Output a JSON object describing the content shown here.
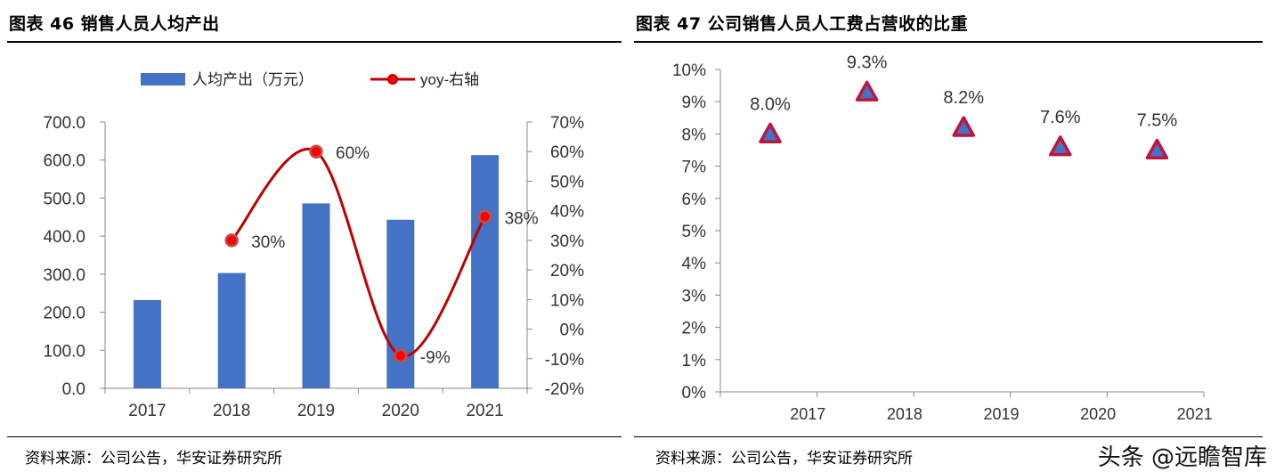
{
  "left": {
    "title": "图表 46 销售人员人均产出",
    "source": "资料来源：公司公告，华安证券研究所",
    "legend": {
      "bar": "人均产出（万元）",
      "line": "yoy-右轴"
    }
  },
  "right": {
    "title": "图表 47 公司销售人员人工费占营收的比重",
    "source": "资料来源：公司公告，华安证券研究所"
  },
  "watermark": "头条 @远瞻智库",
  "colors": {
    "bar": "#4472c4",
    "line": "#c00000",
    "marker_fill": "#ff0000",
    "triangle_fill": "#4472c4",
    "triangle_stroke": "#c0143c"
  },
  "chart_data": [
    {
      "type": "bar",
      "categories": [
        "2017",
        "2018",
        "2019",
        "2020",
        "2021"
      ],
      "series": [
        {
          "name": "人均产出（万元）",
          "axis": "left",
          "type": "bar",
          "values": [
            232,
            303,
            486,
            443,
            613
          ]
        },
        {
          "name": "yoy-右轴",
          "axis": "right",
          "type": "line",
          "values": [
            null,
            30,
            60,
            -9,
            38
          ],
          "labels": [
            "",
            "30%",
            "60%",
            "-9%",
            "38%"
          ]
        }
      ],
      "ylim": [
        0,
        700
      ],
      "yticks": [
        "0.0",
        "100.0",
        "200.0",
        "300.0",
        "400.0",
        "500.0",
        "600.0",
        "700.0"
      ],
      "y2lim": [
        -20,
        70
      ],
      "y2ticks": [
        "-20%",
        "-10%",
        "0%",
        "10%",
        "20%",
        "30%",
        "40%",
        "50%",
        "60%",
        "70%"
      ],
      "legend": "top"
    },
    {
      "type": "scatter",
      "categories": [
        "2017",
        "2018",
        "2019",
        "2020",
        "2021"
      ],
      "values": [
        8.0,
        9.3,
        8.2,
        7.6,
        7.5
      ],
      "labels": [
        "8.0%",
        "9.3%",
        "8.2%",
        "7.6%",
        "7.5%"
      ],
      "ylim": [
        0,
        10
      ],
      "yticks": [
        "0%",
        "1%",
        "2%",
        "3%",
        "4%",
        "5%",
        "6%",
        "7%",
        "8%",
        "9%",
        "10%"
      ],
      "marker": "triangle"
    }
  ]
}
